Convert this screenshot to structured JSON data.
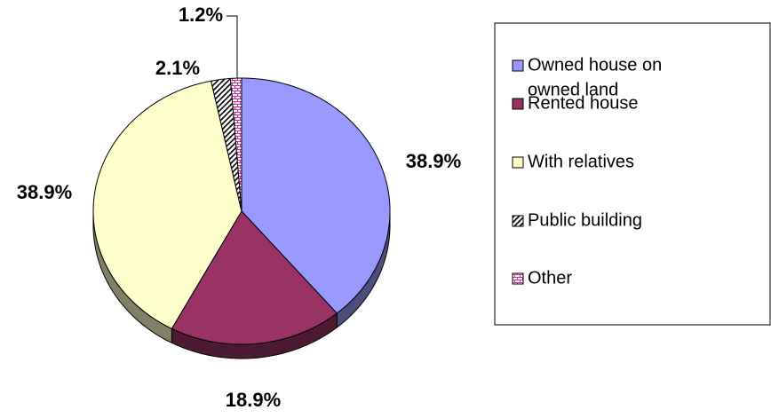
{
  "chart_data": {
    "type": "pie",
    "categories": [
      "Owned house on owned land",
      "Rented house",
      "With relatives",
      "Public building",
      "Other"
    ],
    "legend_lines": [
      [
        "Owned house on",
        "owned land"
      ],
      [
        "Rented house"
      ],
      [
        "With relatives"
      ],
      [
        "Public building"
      ],
      [
        "Other"
      ]
    ],
    "values": [
      38.9,
      18.9,
      38.9,
      2.1,
      1.2
    ],
    "value_labels": [
      "38.9%",
      "18.9%",
      "38.9%",
      "2.1%",
      "1.2%"
    ],
    "colors": [
      "#9999ff",
      "#993366",
      "#ffffcc",
      "#000000",
      "#cc3399"
    ],
    "patterns": [
      null,
      null,
      null,
      "diagonal",
      "brick"
    ],
    "legend": "right"
  }
}
